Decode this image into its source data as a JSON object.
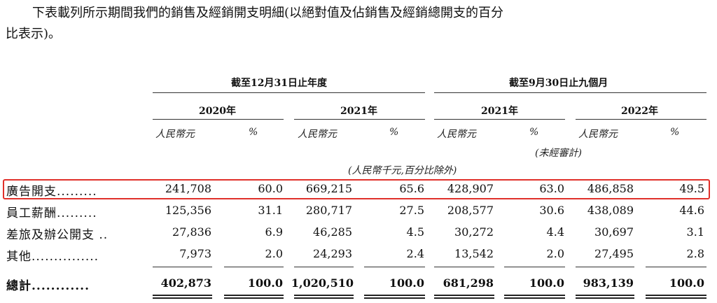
{
  "intro": {
    "line1": "下表載列所示期間我們的銷售及經銷開支明細(以絕對值及佔銷售及經銷總開支的百分",
    "line2": "比表示)。"
  },
  "header": {
    "period_full_year": "截至12月31日止年度",
    "period_nine_months": "截至9月30日止九個月",
    "years": [
      "2020年",
      "2021年",
      "2021年",
      "2022年"
    ],
    "col_rmb": "人民幣元",
    "col_pct": "%",
    "unaudited": "(未經審計)",
    "unit_note": "(人民幣千元,百分比除外)"
  },
  "rows": [
    {
      "label": "廣告開支.........",
      "values": [
        "241,708",
        "60.0",
        "669,215",
        "65.6",
        "428,907",
        "63.0",
        "486,858",
        "49.5"
      ],
      "highlighted": true
    },
    {
      "label": "員工薪酬.........",
      "values": [
        "125,356",
        "31.1",
        "280,717",
        "27.5",
        "208,577",
        "30.6",
        "438,089",
        "44.6"
      ]
    },
    {
      "label": "差旅及辦公開支 ..",
      "values": [
        "27,836",
        "6.9",
        "46,285",
        "4.5",
        "30,272",
        "4.4",
        "30,697",
        "3.1"
      ]
    },
    {
      "label": "其他...............",
      "values": [
        "7,973",
        "2.0",
        "24,293",
        "2.4",
        "13,542",
        "2.0",
        "27,495",
        "2.8"
      ]
    }
  ],
  "total": {
    "label": "總計............",
    "values": [
      "402,873",
      "100.0",
      "1,020,510",
      "100.0",
      "681,298",
      "100.0",
      "983,139",
      "100.0"
    ]
  },
  "colors": {
    "highlight_border": "#e0302a"
  }
}
